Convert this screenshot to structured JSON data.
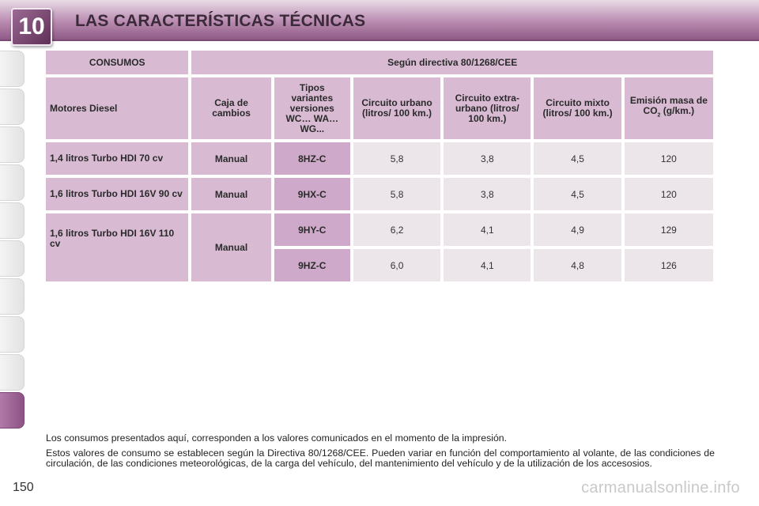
{
  "header": {
    "chapter": "10",
    "title": "LAS CARACTERÍSTICAS TÉCNICAS"
  },
  "table": {
    "header_row": {
      "label": "CONSUMOS",
      "directive": "Según directiva 80/1268/CEE"
    },
    "columns": {
      "engines": "Motores Diesel",
      "gearbox": "Caja de cambios",
      "variants": "Tipos variantes versiones WC… WA… WG...",
      "urban": "Circuito urbano (litros/ 100 km.)",
      "extra_urban": "Circuito extra-urbano (litros/ 100 km.)",
      "mixed": "Circuito mixto (litros/ 100 km.)",
      "emission_prefix": "Emisión masa de",
      "emission_co": "CO",
      "emission_sub": "2",
      "emission_unit": "(g/km.)"
    },
    "rows": [
      {
        "engine": "1,4 litros Turbo HDI 70 cv",
        "gearbox": "Manual",
        "code": "8HZ-C",
        "urban": "5,8",
        "extra_urban": "3,8",
        "mixed": "4,5",
        "co2": "120"
      },
      {
        "engine": "1,6 litros Turbo HDI 16V 90 cv",
        "gearbox": "Manual",
        "code": "9HX-C",
        "urban": "5,8",
        "extra_urban": "3,8",
        "mixed": "4,5",
        "co2": "120"
      },
      {
        "engine": "1,6 litros Turbo HDI 16V 110 cv",
        "gearbox": "Manual",
        "code": "9HY-C",
        "urban": "6,2",
        "extra_urban": "4,1",
        "mixed": "4,9",
        "co2": "129"
      },
      {
        "engine": "",
        "gearbox": "",
        "code": "9HZ-C",
        "urban": "6,0",
        "extra_urban": "4,1",
        "mixed": "4,8",
        "co2": "126"
      }
    ]
  },
  "notes": [
    "Los consumos presentados aquí, corresponden a los valores comunicados en el momento de la impresión.",
    "Estos valores de consumo se establecen según la Directiva 80/1268/CEE. Pueden variar en función del comportamiento al volante, de las condiciones de circulación, de las condiciones meteorológicas, de la carga del vehículo, del mantenimiento del vehículo y de la utilización de los accesosios."
  ],
  "page_number": "150",
  "watermark": "carmanualsonline.info",
  "colors": {
    "header_accent": "#8e5a86",
    "table_header": "#d8bbd3",
    "table_code": "#cfa9c9",
    "table_value": "#ece6ea"
  }
}
